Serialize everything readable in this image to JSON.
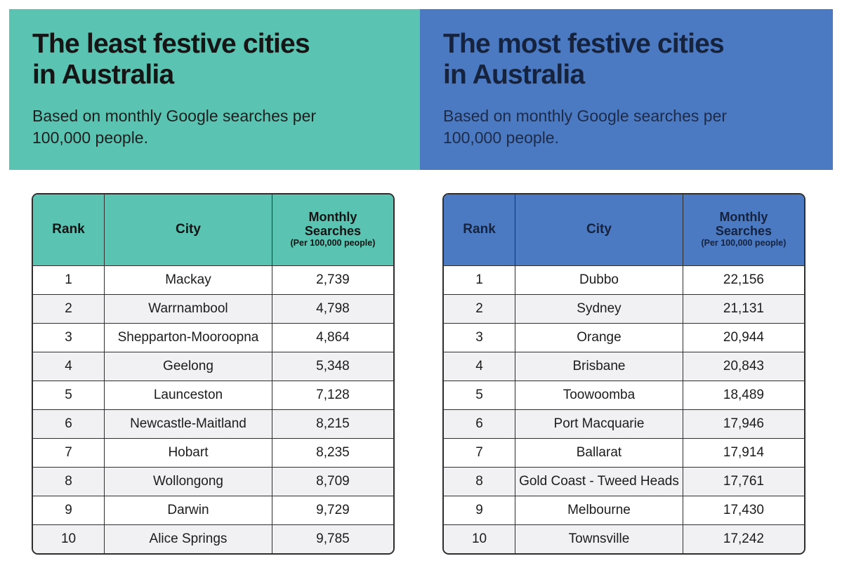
{
  "banners": {
    "least": {
      "title_line1": "The least festive cities",
      "title_line2": "in Australia",
      "subtitle": "Based on monthly Google searches per 100,000 people.",
      "bg_color": "#5ac3b1"
    },
    "most": {
      "title_line1": "The most festive cities",
      "title_line2": "in Australia",
      "subtitle": "Based on monthly Google searches per 100,000 people.",
      "bg_color": "#4b7ac2"
    }
  },
  "tables": {
    "least": {
      "header": {
        "rank": "Rank",
        "city": "City",
        "searches_title": "Monthly Searches",
        "searches_note": "(Per 100,000 people)"
      },
      "rows": [
        {
          "rank": "1",
          "city": "Mackay",
          "searches": "2,739"
        },
        {
          "rank": "2",
          "city": "Warrnambool",
          "searches": "4,798"
        },
        {
          "rank": "3",
          "city": "Shepparton-Mooroopna",
          "searches": "4,864"
        },
        {
          "rank": "4",
          "city": "Geelong",
          "searches": "5,348"
        },
        {
          "rank": "5",
          "city": "Launceston",
          "searches": "7,128"
        },
        {
          "rank": "6",
          "city": "Newcastle-Maitland",
          "searches": "8,215"
        },
        {
          "rank": "7",
          "city": "Hobart",
          "searches": "8,235"
        },
        {
          "rank": "8",
          "city": "Wollongong",
          "searches": "8,709"
        },
        {
          "rank": "9",
          "city": "Darwin",
          "searches": "9,729"
        },
        {
          "rank": "10",
          "city": "Alice Springs",
          "searches": "9,785"
        }
      ]
    },
    "most": {
      "header": {
        "rank": "Rank",
        "city": "City",
        "searches_title": "Monthly Searches",
        "searches_note": "(Per 100,000 people)"
      },
      "rows": [
        {
          "rank": "1",
          "city": "Dubbo",
          "searches": "22,156"
        },
        {
          "rank": "2",
          "city": "Sydney",
          "searches": "21,131"
        },
        {
          "rank": "3",
          "city": "Orange",
          "searches": "20,944"
        },
        {
          "rank": "4",
          "city": "Brisbane",
          "searches": "20,843"
        },
        {
          "rank": "5",
          "city": "Toowoomba",
          "searches": "18,489"
        },
        {
          "rank": "6",
          "city": "Port Macquarie",
          "searches": "17,946"
        },
        {
          "rank": "7",
          "city": "Ballarat",
          "searches": "17,914"
        },
        {
          "rank": "8",
          "city": "Gold Coast - Tweed Heads",
          "searches": "17,761"
        },
        {
          "rank": "9",
          "city": "Melbourne",
          "searches": "17,430"
        },
        {
          "rank": "10",
          "city": "Townsville",
          "searches": "17,242"
        }
      ]
    }
  },
  "chart_data": [
    {
      "type": "table",
      "title": "The least festive cities in Australia",
      "subtitle": "Based on monthly Google searches per 100,000 people.",
      "columns": [
        "Rank",
        "City",
        "Monthly Searches (Per 100,000 people)"
      ],
      "rows": [
        [
          1,
          "Mackay",
          2739
        ],
        [
          2,
          "Warrnambool",
          4798
        ],
        [
          3,
          "Shepparton-Mooroopna",
          4864
        ],
        [
          4,
          "Geelong",
          5348
        ],
        [
          5,
          "Launceston",
          7128
        ],
        [
          6,
          "Newcastle-Maitland",
          8215
        ],
        [
          7,
          "Hobart",
          8235
        ],
        [
          8,
          "Wollongong",
          8709
        ],
        [
          9,
          "Darwin",
          9729
        ],
        [
          10,
          "Alice Springs",
          9785
        ]
      ]
    },
    {
      "type": "table",
      "title": "The most festive cities in Australia",
      "subtitle": "Based on monthly Google searches per 100,000 people.",
      "columns": [
        "Rank",
        "City",
        "Monthly Searches (Per 100,000 people)"
      ],
      "rows": [
        [
          1,
          "Dubbo",
          22156
        ],
        [
          2,
          "Sydney",
          21131
        ],
        [
          3,
          "Orange",
          20944
        ],
        [
          4,
          "Brisbane",
          20843
        ],
        [
          5,
          "Toowoomba",
          18489
        ],
        [
          6,
          "Port Macquarie",
          17946
        ],
        [
          7,
          "Ballarat",
          17914
        ],
        [
          8,
          "Gold Coast - Tweed Heads",
          17761
        ],
        [
          9,
          "Melbourne",
          17430
        ],
        [
          10,
          "Townsville",
          17242
        ]
      ]
    }
  ]
}
